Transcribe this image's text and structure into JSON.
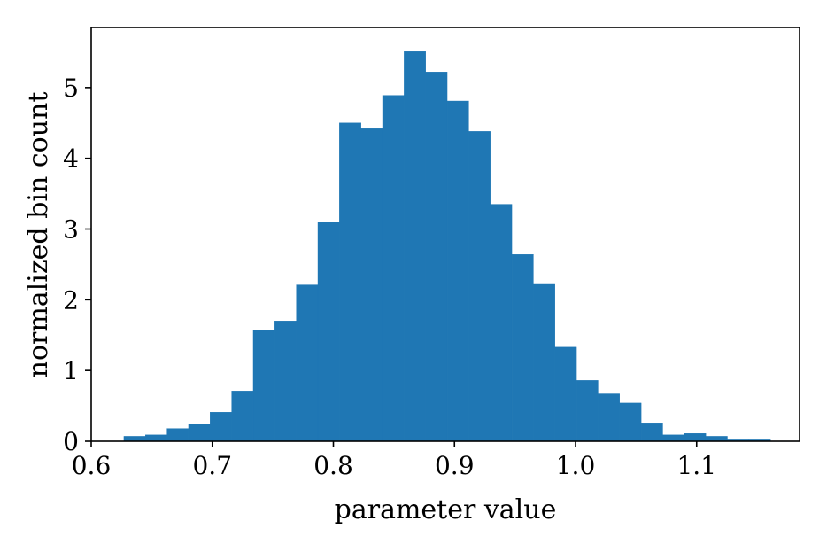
{
  "chart_data": {
    "type": "bar",
    "xlabel": "parameter value",
    "ylabel": "normalized bin count",
    "xlim": [
      0.6,
      1.185
    ],
    "ylim": [
      0,
      5.85
    ],
    "xticks": [
      0.6,
      0.7,
      0.8,
      0.9,
      1.0,
      1.1
    ],
    "xtick_labels": [
      "0.6",
      "0.7",
      "0.8",
      "0.9",
      "1.0",
      "1.1"
    ],
    "yticks": [
      0,
      1,
      2,
      3,
      4,
      5
    ],
    "ytick_labels": [
      "0",
      "1",
      "2",
      "3",
      "4",
      "5"
    ],
    "grid": false,
    "bin_start": 0.627,
    "bin_width": 0.0178,
    "values": [
      0.07,
      0.09,
      0.18,
      0.24,
      0.41,
      0.71,
      1.57,
      1.7,
      2.21,
      3.1,
      4.5,
      4.42,
      4.89,
      5.51,
      5.22,
      4.81,
      4.38,
      3.35,
      2.64,
      2.23,
      1.33,
      0.86,
      0.67,
      0.54,
      0.26,
      0.09,
      0.11,
      0.07,
      0.02,
      0.02
    ],
    "bar_color": "#1f77b4"
  }
}
